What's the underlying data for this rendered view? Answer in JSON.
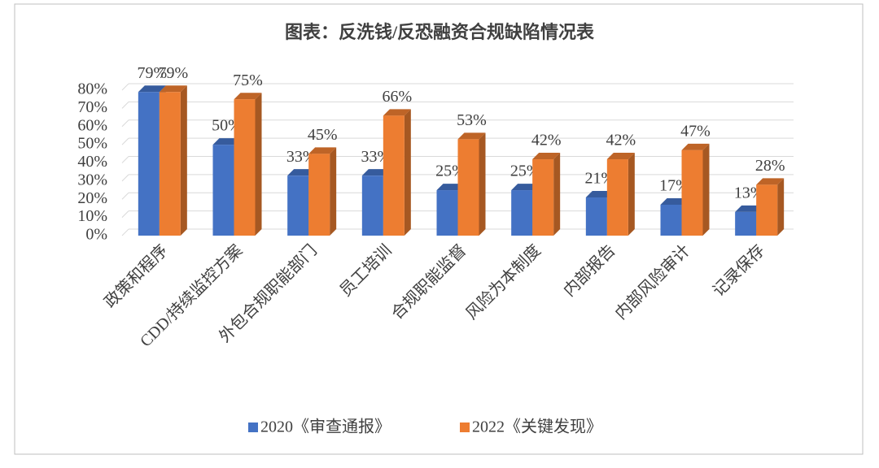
{
  "chart_data": {
    "type": "bar3d",
    "title": "图表：反洗钱/反恐融资合规缺陷情况表",
    "categories": [
      "政策和程序",
      "CDD/持续监控方案",
      "外包合规职能部门",
      "员工培训",
      "合规职能监督",
      "风险为本制度",
      "内部报告",
      "内部风险审计",
      "记录保存"
    ],
    "series": [
      {
        "name": "2020《审查通报》",
        "color": "#4472c4",
        "values": [
          79,
          50,
          33,
          33,
          25,
          25,
          21,
          17,
          13
        ],
        "value_labels": [
          "79%",
          "50%",
          "33%",
          "33%",
          "25%",
          "25%",
          "21%",
          "17%",
          "13%"
        ]
      },
      {
        "name": "2022《关键发现》",
        "color": "#ed7d31",
        "values": [
          79,
          75,
          45,
          66,
          53,
          42,
          42,
          47,
          28
        ],
        "value_labels": [
          "79%",
          "75%",
          "45%",
          "66%",
          "53%",
          "42%",
          "42%",
          "47%",
          "28%"
        ]
      }
    ],
    "ylim": [
      0,
      80
    ],
    "yticks": [
      {
        "value": 0,
        "label": "0%"
      },
      {
        "value": 10,
        "label": "10%"
      },
      {
        "value": 20,
        "label": "20%"
      },
      {
        "value": 30,
        "label": "30%"
      },
      {
        "value": 40,
        "label": "40%"
      },
      {
        "value": 50,
        "label": "50%"
      },
      {
        "value": 60,
        "label": "60%"
      },
      {
        "value": 70,
        "label": "70%"
      },
      {
        "value": 80,
        "label": "80%"
      }
    ],
    "grid": true,
    "legend": "bottom"
  }
}
